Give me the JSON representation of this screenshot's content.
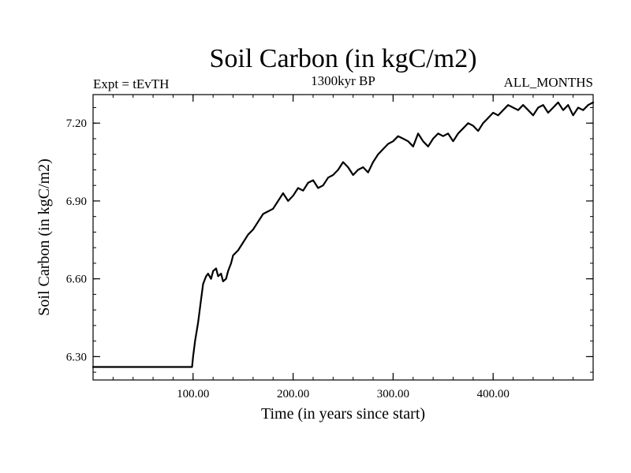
{
  "chart_data": {
    "type": "line",
    "title": "Soil Carbon (in kgC/m2)",
    "left_label": "Expt = tEvTH",
    "center_label": "1300kyr BP",
    "right_label": "ALL_MONTHS",
    "xlabel": "Time (in years since start)",
    "ylabel": "Soil Carbon (in kgC/m2)",
    "xlim": [
      0,
      500
    ],
    "ylim": [
      6.21,
      7.31
    ],
    "x_ticks": [
      {
        "value": 100,
        "label": "100.00"
      },
      {
        "value": 200,
        "label": "200.00"
      },
      {
        "value": 300,
        "label": "300.00"
      },
      {
        "value": 400,
        "label": "400.00"
      }
    ],
    "y_ticks": [
      {
        "value": 6.3,
        "label": "6.30"
      },
      {
        "value": 6.6,
        "label": "6.60"
      },
      {
        "value": 6.9,
        "label": "6.90"
      },
      {
        "value": 7.2,
        "label": "7.20"
      }
    ],
    "x_minor_step": 20,
    "y_minor_step": 0.06,
    "grid": false,
    "series": [
      {
        "name": "Soil Carbon",
        "color": "#000000",
        "x": [
          0,
          99,
          100,
          102,
          105,
          108,
          110,
          113,
          115,
          118,
          120,
          123,
          125,
          128,
          130,
          133,
          135,
          138,
          140,
          145,
          150,
          155,
          160,
          165,
          170,
          175,
          180,
          185,
          190,
          195,
          200,
          205,
          210,
          215,
          220,
          225,
          230,
          235,
          240,
          245,
          250,
          255,
          260,
          265,
          270,
          275,
          280,
          285,
          290,
          295,
          300,
          305,
          310,
          315,
          320,
          325,
          330,
          335,
          340,
          345,
          350,
          355,
          360,
          365,
          370,
          375,
          380,
          385,
          390,
          395,
          400,
          405,
          410,
          415,
          420,
          425,
          430,
          435,
          440,
          445,
          450,
          455,
          460,
          465,
          470,
          475,
          480,
          485,
          490,
          495,
          500
        ],
        "y": [
          6.26,
          6.26,
          6.3,
          6.36,
          6.43,
          6.52,
          6.58,
          6.61,
          6.62,
          6.6,
          6.63,
          6.64,
          6.61,
          6.62,
          6.59,
          6.6,
          6.63,
          6.66,
          6.69,
          6.71,
          6.74,
          6.77,
          6.79,
          6.82,
          6.85,
          6.86,
          6.87,
          6.9,
          6.93,
          6.9,
          6.92,
          6.95,
          6.94,
          6.97,
          6.98,
          6.95,
          6.96,
          6.99,
          7.0,
          7.02,
          7.05,
          7.03,
          7.0,
          7.02,
          7.03,
          7.01,
          7.05,
          7.08,
          7.1,
          7.12,
          7.13,
          7.15,
          7.14,
          7.13,
          7.11,
          7.16,
          7.13,
          7.11,
          7.14,
          7.16,
          7.15,
          7.16,
          7.13,
          7.16,
          7.18,
          7.2,
          7.19,
          7.17,
          7.2,
          7.22,
          7.24,
          7.23,
          7.25,
          7.27,
          7.26,
          7.25,
          7.27,
          7.25,
          7.23,
          7.26,
          7.27,
          7.24,
          7.26,
          7.28,
          7.25,
          7.27,
          7.23,
          7.26,
          7.25,
          7.27,
          7.28
        ]
      }
    ]
  }
}
